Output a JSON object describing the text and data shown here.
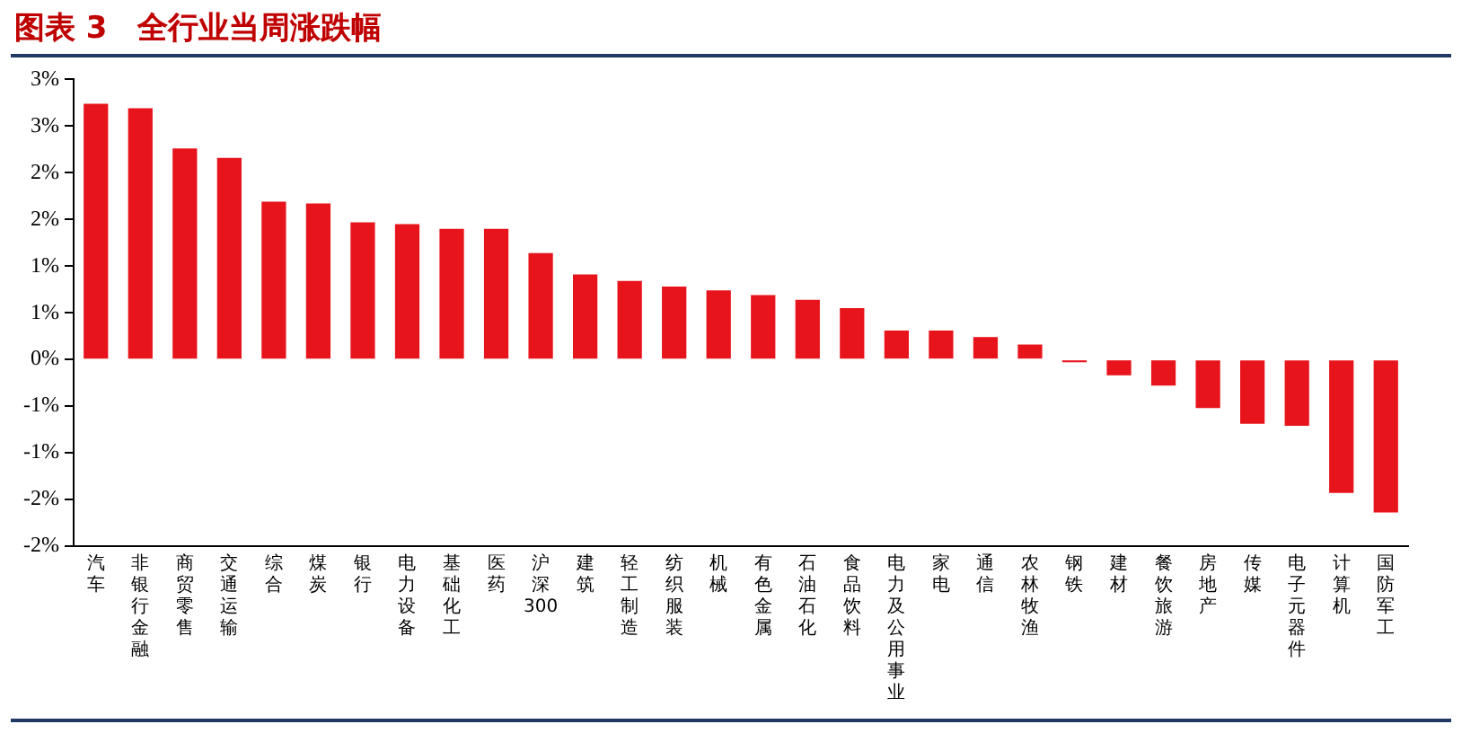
{
  "chart_data": {
    "type": "bar",
    "title": "图表 3　全行业当周涨跌幅",
    "categories": [
      "汽车",
      "非银行金融",
      "商贸零售",
      "交通运输",
      "综合",
      "煤炭",
      "银行",
      "电力设备",
      "基础化工",
      "医药",
      "沪深300",
      "建筑",
      "轻工制造",
      "纺织服装",
      "机械",
      "有色金属",
      "石油石化",
      "食品饮料",
      "电力及公用事业",
      "家电",
      "通信",
      "农林牧渔",
      "钢铁",
      "建材",
      "餐饮旅游",
      "房地产",
      "传媒",
      "电子元器件",
      "计算机",
      "国防军工"
    ],
    "values": [
      2.74,
      2.69,
      2.26,
      2.16,
      1.69,
      1.67,
      1.47,
      1.45,
      1.4,
      1.4,
      1.14,
      0.91,
      0.84,
      0.78,
      0.74,
      0.69,
      0.64,
      0.55,
      0.31,
      0.31,
      0.24,
      0.16,
      -0.03,
      -0.17,
      -0.28,
      -0.52,
      -0.69,
      -0.71,
      -1.43,
      -1.64
    ],
    "color": "#e8141c",
    "ylim": [
      -2,
      3
    ],
    "yticks": [
      {
        "value": -2,
        "label": "-2%"
      },
      {
        "value": -1.5,
        "label": "-2%"
      },
      {
        "value": -1,
        "label": "-1%"
      },
      {
        "value": -0.5,
        "label": "-1%"
      },
      {
        "value": 0,
        "label": "0%"
      },
      {
        "value": 0.5,
        "label": "1%"
      },
      {
        "value": 1,
        "label": "1%"
      },
      {
        "value": 1.5,
        "label": "2%"
      },
      {
        "value": 2,
        "label": "2%"
      },
      {
        "value": 2.5,
        "label": "3%"
      },
      {
        "value": 3,
        "label": "3%"
      }
    ],
    "grid": false,
    "legend": false
  }
}
